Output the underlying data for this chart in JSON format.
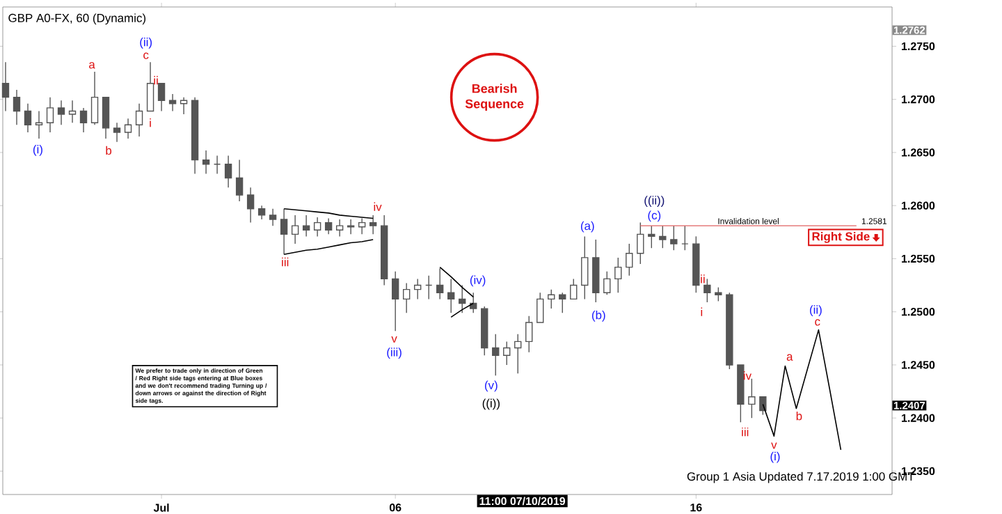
{
  "chart_data": {
    "type": "candlestick",
    "title": "GBP A0-FX, 60 (Dynamic)",
    "color": "#555555",
    "categories": [
      null,
      null,
      null,
      null,
      null,
      null,
      null,
      null,
      null,
      null,
      null,
      null,
      null,
      null,
      "Jul",
      null,
      null,
      null,
      null,
      null,
      null,
      null,
      null,
      null,
      null,
      null,
      null,
      null,
      null,
      null,
      null,
      null,
      null,
      null,
      null,
      "06",
      null,
      null,
      null,
      null,
      null,
      null,
      null,
      null,
      null,
      null,
      null,
      null,
      null,
      null,
      null,
      null,
      null,
      null,
      null,
      null,
      null,
      null,
      null,
      null,
      null,
      null,
      "16",
      null,
      null,
      null,
      null,
      null,
      null,
      null,
      null,
      null,
      null,
      null,
      null,
      null
    ],
    "ohlc": [
      [
        1.2715,
        1.2735,
        1.2689,
        1.2702
      ],
      [
        1.2702,
        1.2709,
        1.2676,
        1.2689
      ],
      [
        1.2689,
        1.2696,
        1.2669,
        1.2676
      ],
      [
        1.2676,
        1.2689,
        1.2663,
        1.2678
      ],
      [
        1.2678,
        1.2702,
        1.2669,
        1.2692
      ],
      [
        1.2692,
        1.2699,
        1.2676,
        1.2686
      ],
      [
        1.2686,
        1.2699,
        1.2678,
        1.2689
      ],
      [
        1.2689,
        1.2692,
        1.2669,
        1.2678
      ],
      [
        1.2678,
        1.2726,
        1.2676,
        1.2702
      ],
      [
        1.2702,
        1.2702,
        1.2663,
        1.2673
      ],
      [
        1.2673,
        1.2678,
        1.266,
        1.2669
      ],
      [
        1.2669,
        1.2682,
        1.2663,
        1.2676
      ],
      [
        1.2676,
        1.2696,
        1.2665,
        1.2689
      ],
      [
        1.2689,
        1.2735,
        1.2689,
        1.2715
      ],
      [
        1.2715,
        1.2715,
        1.2689,
        1.2699
      ],
      [
        1.2699,
        1.2705,
        1.2689,
        1.2696
      ],
      [
        1.2696,
        1.2702,
        1.2686,
        1.2699
      ],
      [
        1.2699,
        1.2702,
        1.263,
        1.2643
      ],
      [
        1.2643,
        1.2652,
        1.263,
        1.2639
      ],
      [
        1.2639,
        1.2647,
        1.263,
        1.2639
      ],
      [
        1.2639,
        1.2647,
        1.2617,
        1.2626
      ],
      [
        1.2626,
        1.2643,
        1.2604,
        1.261
      ],
      [
        1.261,
        1.2617,
        1.2584,
        1.2597
      ],
      [
        1.2597,
        1.26,
        1.2587,
        1.2591
      ],
      [
        1.2591,
        1.2597,
        1.2581,
        1.2587
      ],
      [
        1.2587,
        1.2597,
        1.2554,
        1.2573
      ],
      [
        1.2573,
        1.2591,
        1.2564,
        1.2581
      ],
      [
        1.2581,
        1.2591,
        1.2571,
        1.2577
      ],
      [
        1.2577,
        1.2589,
        1.2571,
        1.2584
      ],
      [
        1.2584,
        1.2588,
        1.2573,
        1.2577
      ],
      [
        1.2577,
        1.2587,
        1.2571,
        1.2581
      ],
      [
        1.2581,
        1.2587,
        1.2573,
        1.258
      ],
      [
        1.258,
        1.2588,
        1.2573,
        1.2584
      ],
      [
        1.2584,
        1.2591,
        1.2573,
        1.2581
      ],
      [
        1.2581,
        1.2591,
        1.2525,
        1.2531
      ],
      [
        1.2531,
        1.2538,
        1.2482,
        1.2512
      ],
      [
        1.2512,
        1.2527,
        1.2499,
        1.2521
      ],
      [
        1.2521,
        1.2531,
        1.2512,
        1.2525
      ],
      [
        1.2525,
        1.2534,
        1.2512,
        1.2525
      ],
      [
        1.2525,
        1.2541,
        1.2512,
        1.2518
      ],
      [
        1.2518,
        1.2531,
        1.2499,
        1.2512
      ],
      [
        1.2512,
        1.2525,
        1.2499,
        1.2508
      ],
      [
        1.2508,
        1.2518,
        1.2499,
        1.2503
      ],
      [
        1.2503,
        1.2505,
        1.2459,
        1.2466
      ],
      [
        1.2466,
        1.2479,
        1.244,
        1.2459
      ],
      [
        1.2459,
        1.2472,
        1.245,
        1.2466
      ],
      [
        1.2466,
        1.2479,
        1.2442,
        1.2472
      ],
      [
        1.2472,
        1.2496,
        1.2462,
        1.249
      ],
      [
        1.249,
        1.2518,
        1.249,
        1.2512
      ],
      [
        1.2512,
        1.2521,
        1.2503,
        1.2516
      ],
      [
        1.2516,
        1.2518,
        1.2499,
        1.2512
      ],
      [
        1.2512,
        1.2531,
        1.2512,
        1.2525
      ],
      [
        1.2525,
        1.2571,
        1.2512,
        1.2551
      ],
      [
        1.2551,
        1.2568,
        1.2509,
        1.2518
      ],
      [
        1.2518,
        1.2538,
        1.2516,
        1.2531
      ],
      [
        1.2531,
        1.2551,
        1.2518,
        1.2542
      ],
      [
        1.2542,
        1.2564,
        1.2534,
        1.2555
      ],
      [
        1.2555,
        1.2584,
        1.2545,
        1.2573
      ],
      [
        1.2573,
        1.2581,
        1.256,
        1.2571
      ],
      [
        1.2571,
        1.2581,
        1.256,
        1.2568
      ],
      [
        1.2568,
        1.2581,
        1.2558,
        1.2564
      ],
      [
        1.2564,
        1.2581,
        1.2558,
        1.2564
      ],
      [
        1.2564,
        1.2571,
        1.2518,
        1.2525
      ],
      [
        1.2525,
        1.2531,
        1.2509,
        1.2518
      ],
      [
        1.2518,
        1.2523,
        1.251,
        1.2516
      ],
      [
        1.2516,
        1.2518,
        1.2446,
        1.245
      ],
      [
        1.245,
        1.245,
        1.2396,
        1.2413
      ],
      [
        1.2413,
        1.2437,
        1.24,
        1.242
      ],
      [
        1.242,
        1.242,
        1.2403,
        1.2407
      ],
      null,
      null,
      null,
      null,
      null,
      null,
      null
    ],
    "series": [
      {
        "type": "line",
        "color": "#000000",
        "values": [
          null,
          null,
          null,
          null,
          null,
          null,
          null,
          null,
          null,
          null,
          null,
          null,
          null,
          null,
          null,
          null,
          null,
          null,
          null,
          null,
          null,
          null,
          null,
          null,
          null,
          null,
          null,
          null,
          null,
          null,
          null,
          null,
          null,
          null,
          null,
          null,
          null,
          null,
          null,
          null,
          null,
          null,
          null,
          null,
          null,
          null,
          null,
          null,
          null,
          null,
          null,
          null,
          null,
          null,
          null,
          null,
          null,
          null,
          null,
          null,
          null,
          null,
          null,
          null,
          null,
          null,
          null,
          null,
          1.2413,
          1.2383,
          1.2449,
          1.2409,
          1.2446,
          1.2483,
          1.2427,
          1.237
        ]
      },
      {
        "type": "line",
        "color": "#000000",
        "values": [
          null,
          null,
          null,
          null,
          null,
          null,
          null,
          null,
          null,
          null,
          null,
          null,
          null,
          null,
          null,
          null,
          null,
          null,
          null,
          null,
          null,
          null,
          null,
          null,
          null,
          1.2597,
          1.2596,
          1.2595,
          1.2594,
          1.2593,
          1.2591,
          1.259,
          1.2589,
          1.2588,
          null,
          null,
          null,
          null,
          null,
          null,
          null,
          null,
          null,
          null,
          null,
          null,
          null,
          null,
          null,
          null,
          null,
          null,
          null,
          null,
          null,
          null,
          null,
          null,
          null,
          null,
          null,
          null,
          null,
          null,
          null,
          null,
          null,
          null,
          null,
          null,
          null,
          null,
          null,
          null,
          null,
          null
        ]
      },
      {
        "type": "line",
        "color": "#000000",
        "values": [
          null,
          null,
          null,
          null,
          null,
          null,
          null,
          null,
          null,
          null,
          null,
          null,
          null,
          null,
          null,
          null,
          null,
          null,
          null,
          null,
          null,
          null,
          null,
          null,
          null,
          1.2554,
          1.2556,
          1.2558,
          1.2559,
          1.2561,
          1.2563,
          1.2565,
          1.2566,
          1.2568,
          null,
          null,
          null,
          null,
          null,
          null,
          null,
          null,
          null,
          null,
          null,
          null,
          null,
          null,
          null,
          null,
          null,
          null,
          null,
          null,
          null,
          null,
          null,
          null,
          null,
          null,
          null,
          null,
          null,
          null,
          null,
          null,
          null,
          null,
          null,
          null,
          null,
          null,
          null,
          null,
          null,
          null
        ]
      },
      {
        "type": "line",
        "color": "#000000",
        "values": [
          null,
          null,
          null,
          null,
          null,
          null,
          null,
          null,
          null,
          null,
          null,
          null,
          null,
          null,
          null,
          null,
          null,
          null,
          null,
          null,
          null,
          null,
          null,
          null,
          null,
          null,
          null,
          null,
          null,
          null,
          null,
          null,
          null,
          null,
          null,
          null,
          null,
          null,
          null,
          1.2542,
          1.2533,
          1.2523,
          1.2514,
          null,
          null,
          null,
          null,
          null,
          null,
          null,
          null,
          null,
          null,
          null,
          null,
          null,
          null,
          null,
          null,
          null,
          null,
          null,
          null,
          null,
          null,
          null,
          null,
          null,
          null,
          null,
          null,
          null,
          null,
          null,
          null,
          null
        ]
      },
      {
        "type": "line",
        "color": "#000000",
        "values": [
          null,
          null,
          null,
          null,
          null,
          null,
          null,
          null,
          null,
          null,
          null,
          null,
          null,
          null,
          null,
          null,
          null,
          null,
          null,
          null,
          null,
          null,
          null,
          null,
          null,
          null,
          null,
          null,
          null,
          null,
          null,
          null,
          null,
          null,
          null,
          null,
          null,
          null,
          null,
          null,
          1.2495,
          1.2502,
          1.2508,
          null,
          null,
          null,
          null,
          null,
          null,
          null,
          null,
          null,
          null,
          null,
          null,
          null,
          null,
          null,
          null,
          null,
          null,
          null,
          null,
          null,
          null,
          null,
          null,
          null,
          null,
          null,
          null,
          null,
          null,
          null,
          null,
          null
        ]
      }
    ],
    "ylim": [
      1.2328,
      1.2787
    ],
    "yticks": [
      {
        "value": 1.235,
        "label": "1.2350"
      },
      {
        "value": 1.24,
        "label": "1.2400"
      },
      {
        "value": 1.245,
        "label": "1.2450"
      },
      {
        "value": 1.25,
        "label": "1.2500"
      },
      {
        "value": 1.255,
        "label": "1.2550"
      },
      {
        "value": 1.26,
        "label": "1.2600"
      },
      {
        "value": 1.265,
        "label": "1.2650"
      },
      {
        "value": 1.27,
        "label": "1.2700"
      },
      {
        "value": 1.275,
        "label": "1.2750"
      }
    ],
    "ref_lines": [
      {
        "axis": "y",
        "value": 1.2581,
        "label": "Invalidation level",
        "color": "#e06060"
      }
    ],
    "annotations": [
      "(i)",
      "a",
      "b",
      "(ii)",
      "c",
      "ii",
      "i",
      "iii",
      "iv",
      "v",
      "(iii)",
      "(iv)",
      "(v)",
      "((i))",
      "(a)",
      "(b)",
      "((ii))",
      "(c)",
      "ii",
      "i",
      "iv",
      "iii",
      "v",
      "(i)",
      "a",
      "b",
      "(ii)",
      "c",
      "1.2581",
      "1.2762",
      "1.2407",
      "11:00 07/10/2019",
      "Bearish Sequence",
      "Right Side",
      "We prefer to trade only in direction of Green / Red Right side tags entering at Blue boxes and we don't recommend trading Turning up / down arrows or against the direction of Right side tags.",
      "Group 1 Asia Updated 7.17.2019 1:00 GMT"
    ]
  }
}
